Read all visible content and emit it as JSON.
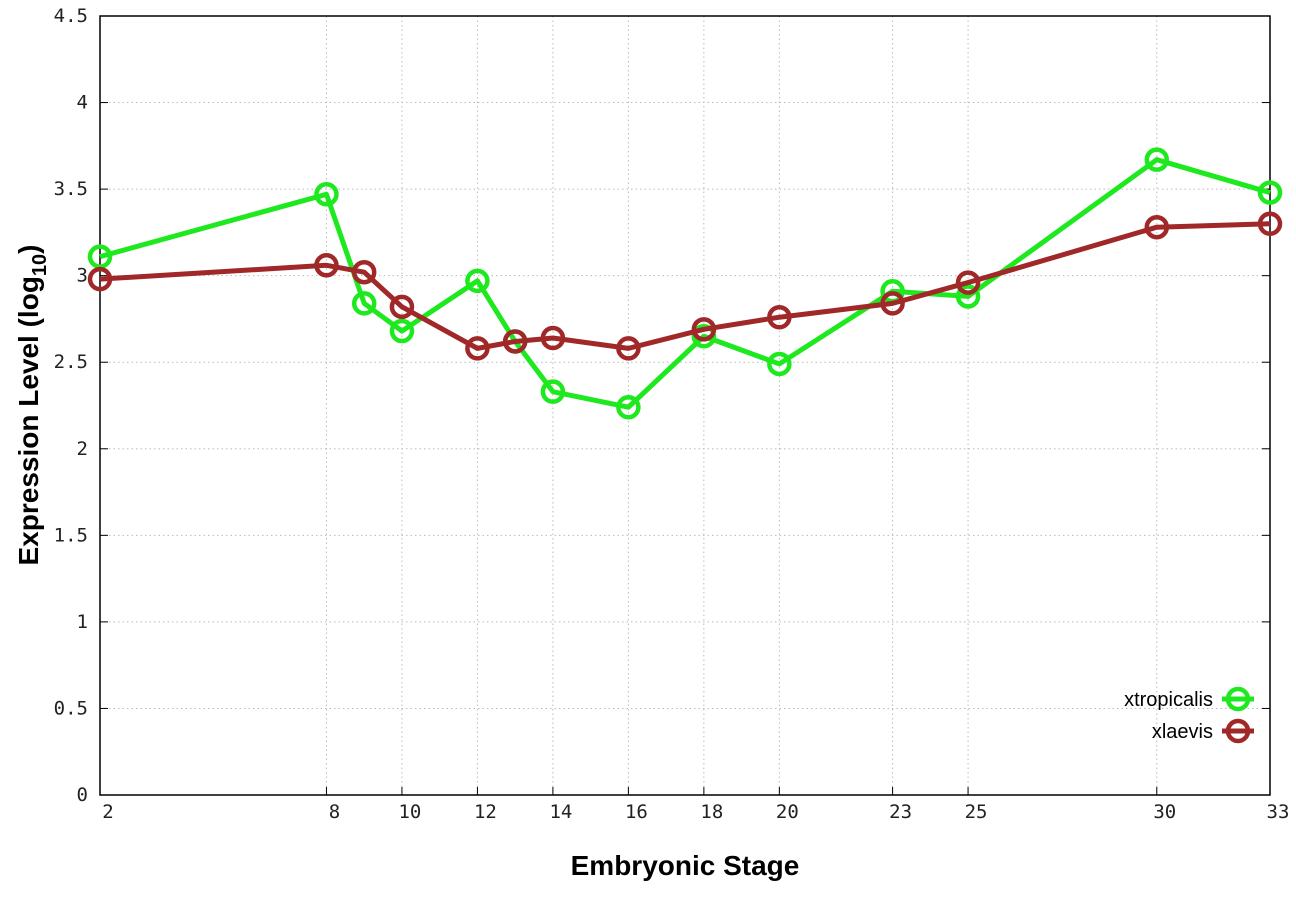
{
  "chart_data": {
    "type": "line",
    "title": "",
    "xlabel": "Embryonic Stage",
    "ylabel": "Expression Level (log",
    "ylabel_subscript": "10",
    "ylabel_suffix": ")",
    "x": [
      2,
      8,
      9,
      10,
      12,
      13,
      14,
      16,
      18,
      20,
      23,
      25,
      30,
      33
    ],
    "xticks": [
      "2",
      "8",
      "10",
      "12",
      "14",
      "16",
      "18",
      "20",
      "23",
      "25",
      "30",
      "33"
    ],
    "xlim": [
      2,
      33
    ],
    "ylim": [
      0,
      4.5
    ],
    "yticks": [
      "0",
      "0.5",
      "1",
      "1.5",
      "2",
      "2.5",
      "3",
      "3.5",
      "4",
      "4.5"
    ],
    "grid": true,
    "legend_position": "bottom-right",
    "series": [
      {
        "name": "xtropicalis",
        "color": "#1ee81e",
        "values": [
          3.11,
          3.47,
          2.84,
          2.68,
          2.97,
          2.62,
          2.33,
          2.24,
          2.65,
          2.49,
          2.91,
          2.88,
          3.67,
          3.48
        ]
      },
      {
        "name": "xlaevis",
        "color": "#a02828",
        "values": [
          2.98,
          3.06,
          3.02,
          2.82,
          2.58,
          2.62,
          2.64,
          2.58,
          2.69,
          2.76,
          2.84,
          2.96,
          3.28,
          3.3
        ]
      }
    ]
  }
}
